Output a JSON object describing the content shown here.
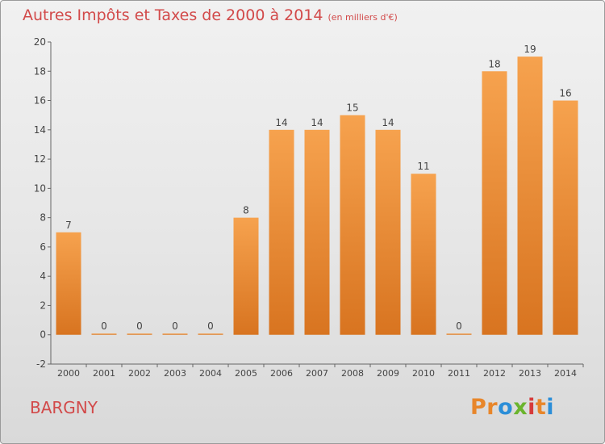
{
  "header": {
    "title": "Autres Impôts et Taxes de 2000 à 2014",
    "unit": "(en milliers d'€)"
  },
  "footer": {
    "place": "BARGNY",
    "logo_text": "Proxiti",
    "logo_colors": [
      "#e8862a",
      "#e8862a",
      "#2b8ed8",
      "#6ab42d",
      "#d63a3a",
      "#e8862a",
      "#2b8ed8"
    ]
  },
  "colors": {
    "bar_top": "#f6a24e",
    "bar_bottom": "#d87420",
    "text": "#d24a4a"
  },
  "chart_data": {
    "type": "bar",
    "categories": [
      "2000",
      "2001",
      "2002",
      "2003",
      "2004",
      "2005",
      "2006",
      "2007",
      "2008",
      "2009",
      "2010",
      "2011",
      "2012",
      "2013",
      "2014"
    ],
    "values": [
      7,
      0,
      0,
      0,
      0,
      8,
      14,
      14,
      15,
      14,
      11,
      0,
      18,
      19,
      16
    ],
    "ylim": [
      -2,
      20
    ],
    "yticks": [
      -2,
      0,
      2,
      4,
      6,
      8,
      10,
      12,
      14,
      16,
      18,
      20
    ],
    "grid": false,
    "data_labels": true
  }
}
